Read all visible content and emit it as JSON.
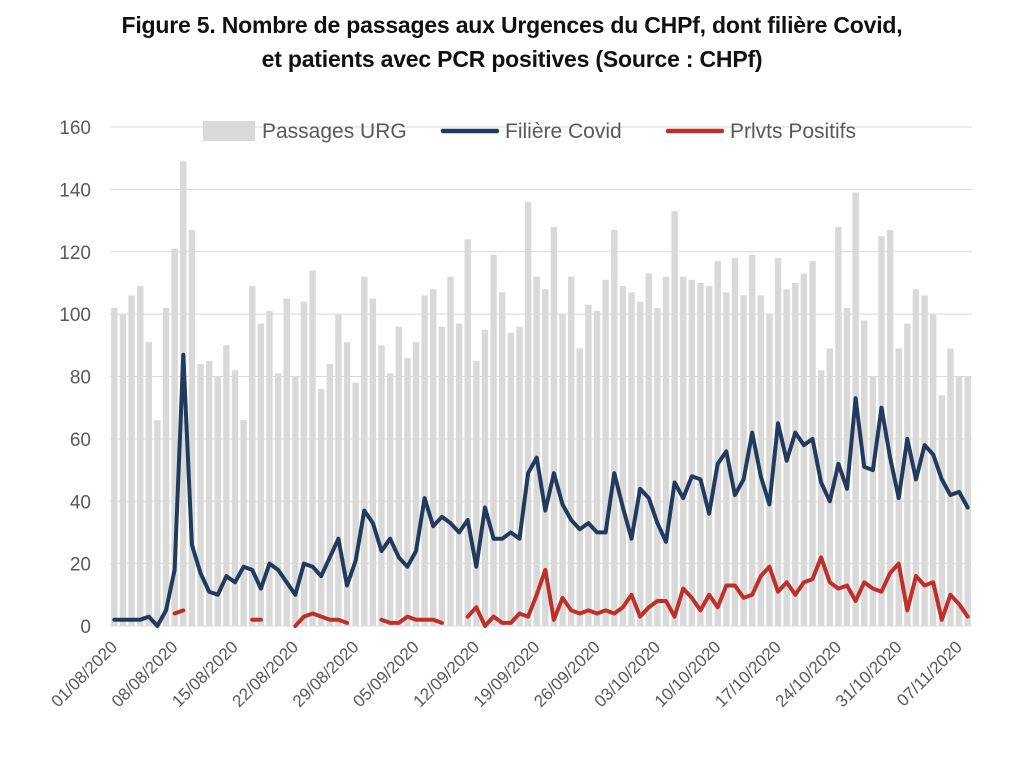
{
  "title_line1": "Figure 5. Nombre de passages aux Urgences du CHPf, dont filière Covid,",
  "title_line2": "et patients avec PCR positives (Source : CHPf)",
  "chart_data": {
    "type": "bar",
    "colors": {
      "bars": "#d9d9d9",
      "covid": "#223a5e",
      "positifs": "#c0302a",
      "grid": "#d9d9d9",
      "text": "#595959"
    },
    "y_ticks": [
      0,
      20,
      40,
      60,
      80,
      100,
      120,
      140,
      160
    ],
    "ylim": [
      0,
      160
    ],
    "x_tick_labels": [
      "01/08/2020",
      "08/08/2020",
      "15/08/2020",
      "22/08/2020",
      "29/08/2020",
      "05/09/2020",
      "12/09/2020",
      "19/09/2020",
      "26/09/2020",
      "03/10/2020",
      "10/10/2020",
      "17/10/2020",
      "24/10/2020",
      "31/10/2020",
      "07/11/2020"
    ],
    "x_tick_index": [
      0,
      7,
      14,
      21,
      28,
      35,
      42,
      49,
      56,
      63,
      70,
      77,
      84,
      91,
      98
    ],
    "legend": {
      "bars": "Passages URG",
      "covid": "Filière Covid",
      "positifs": "Prlvts Positifs"
    },
    "series": [
      {
        "name": "Passages URG",
        "kind": "bar",
        "values": [
          102,
          100,
          106,
          109,
          91,
          66,
          102,
          121,
          149,
          127,
          84,
          85,
          80,
          90,
          82,
          66,
          109,
          97,
          101,
          81,
          105,
          80,
          104,
          114,
          76,
          84,
          100,
          91,
          78,
          112,
          105,
          90,
          81,
          96,
          86,
          91,
          106,
          108,
          96,
          112,
          97,
          124,
          85,
          95,
          119,
          107,
          94,
          96,
          136,
          112,
          108,
          128,
          100,
          112,
          89,
          103,
          101,
          111,
          127,
          109,
          107,
          104,
          113,
          102,
          112,
          133,
          112,
          111,
          110,
          109,
          117,
          107,
          118,
          106,
          119,
          106,
          100,
          118,
          108,
          110,
          113,
          117,
          82,
          89,
          128,
          102,
          139,
          98,
          80,
          125,
          127,
          89,
          97,
          108,
          106,
          100,
          74,
          89,
          80,
          80
        ]
      },
      {
        "name": "Filière Covid",
        "kind": "line",
        "values": [
          2,
          2,
          2,
          2,
          3,
          0,
          5,
          18,
          87,
          26,
          17,
          11,
          10,
          16,
          14,
          19,
          18,
          12,
          20,
          18,
          14,
          10,
          20,
          19,
          16,
          22,
          28,
          13,
          21,
          37,
          33,
          24,
          28,
          22,
          19,
          24,
          41,
          32,
          35,
          33,
          30,
          34,
          19,
          38,
          28,
          28,
          30,
          28,
          49,
          54,
          37,
          49,
          39,
          34,
          31,
          33,
          30,
          30,
          49,
          38,
          28,
          44,
          41,
          33,
          27,
          46,
          41,
          48,
          47,
          36,
          52,
          56,
          42,
          47,
          62,
          48,
          39,
          65,
          53,
          62,
          58,
          60,
          46,
          40,
          52,
          44,
          73,
          51,
          50,
          70,
          54,
          41,
          60,
          47,
          58,
          55,
          47,
          42,
          43,
          38
        ]
      },
      {
        "name": "Prlvts Positifs",
        "kind": "line",
        "values": [
          null,
          null,
          null,
          null,
          null,
          null,
          null,
          4,
          5,
          null,
          null,
          null,
          null,
          null,
          null,
          null,
          2,
          2,
          null,
          null,
          null,
          0,
          3,
          4,
          3,
          2,
          2,
          1,
          null,
          null,
          null,
          2,
          1,
          1,
          3,
          2,
          2,
          2,
          1,
          null,
          null,
          3,
          6,
          0,
          3,
          1,
          1,
          4,
          3,
          10,
          18,
          2,
          9,
          5,
          4,
          5,
          4,
          5,
          4,
          6,
          10,
          3,
          6,
          8,
          8,
          3,
          12,
          9,
          5,
          10,
          6,
          13,
          13,
          9,
          10,
          16,
          19,
          11,
          14,
          10,
          14,
          15,
          22,
          14,
          12,
          13,
          8,
          14,
          12,
          11,
          17,
          20,
          5,
          16,
          13,
          14,
          2,
          10,
          7,
          3
        ]
      }
    ]
  }
}
